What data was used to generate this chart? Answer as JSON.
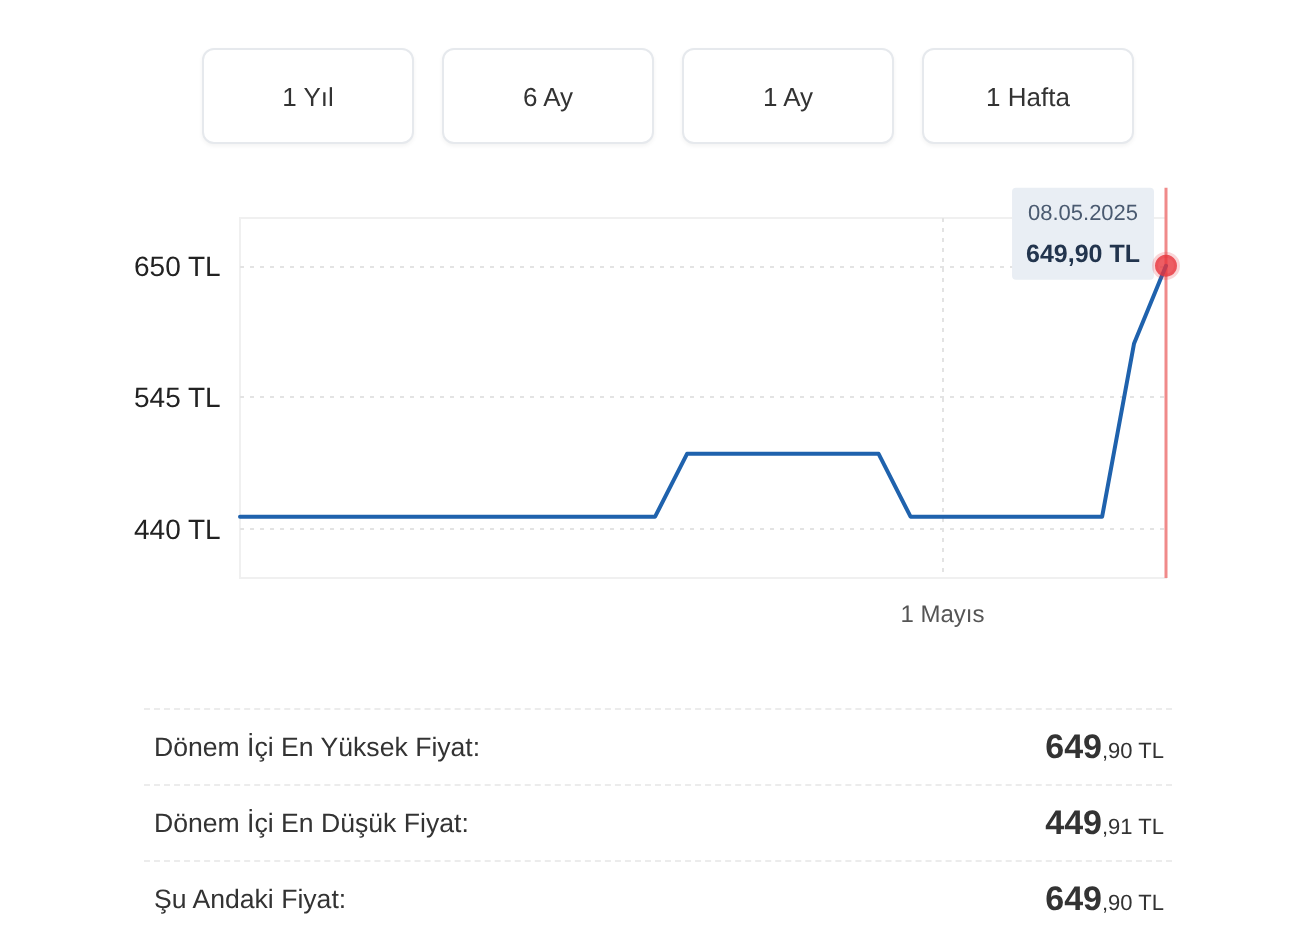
{
  "chart_data": [
    {
      "type": "other",
      "annotations": [
        "1 Yıl",
        "6 Ay",
        "1 Ay",
        "1 Hafta"
      ]
    },
    {
      "type": "line",
      "categories": [
        null,
        null,
        null,
        null,
        null,
        null,
        null,
        null,
        null,
        null,
        null,
        null,
        null,
        null,
        null,
        null,
        null,
        null,
        null,
        null,
        null,
        null,
        "1 Mayıs",
        null,
        null,
        null,
        null,
        null,
        null,
        null
      ],
      "series": [
        {
          "color": "#1f62ad",
          "values": [
            449.91,
            449.91,
            449.91,
            449.91,
            449.91,
            449.91,
            449.91,
            449.91,
            449.91,
            449.91,
            449.91,
            449.91,
            449.91,
            449.91,
            500,
            500,
            500,
            500,
            500,
            500,
            500,
            449.91,
            449.91,
            449.91,
            449.91,
            449.91,
            449.91,
            449.91,
            588,
            649.9
          ]
        },
        {
          "type": "scatter",
          "color": "#e8343c",
          "values": [
            null,
            null,
            null,
            null,
            null,
            null,
            null,
            null,
            null,
            null,
            null,
            null,
            null,
            null,
            null,
            null,
            null,
            null,
            null,
            null,
            null,
            null,
            null,
            null,
            null,
            null,
            null,
            null,
            null,
            649.9
          ]
        }
      ],
      "ylim": [
        401,
        688
      ],
      "yticks": [
        {
          "value": 650,
          "label": "650 TL"
        },
        {
          "value": 545,
          "label": "545 TL"
        },
        {
          "value": 440,
          "label": "440 TL"
        }
      ],
      "grid": true,
      "line_style": "solid",
      "annotations": [
        "08.05.2025",
        "649,90 TL"
      ]
    },
    {
      "type": "other",
      "annotations": [
        "Dönem İçi En Yüksek Fiyat:",
        "649,90 TL",
        "Dönem İçi En Düşük Fiyat:",
        "449,91 TL",
        "Şu Andaki Fiyat:",
        "649,90 TL"
      ]
    }
  ]
}
